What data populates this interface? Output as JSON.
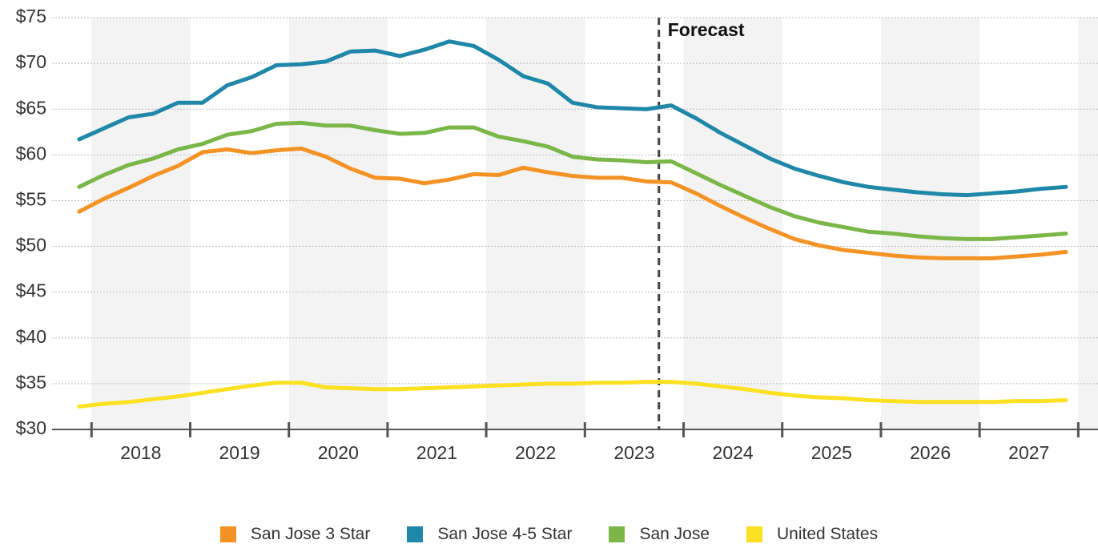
{
  "chart_data": {
    "type": "line",
    "x": [
      2017.875,
      2018.125,
      2018.375,
      2018.625,
      2018.875,
      2019.125,
      2019.375,
      2019.625,
      2019.875,
      2020.125,
      2020.375,
      2020.625,
      2020.875,
      2021.125,
      2021.375,
      2021.625,
      2021.875,
      2022.125,
      2022.375,
      2022.625,
      2022.875,
      2023.125,
      2023.375,
      2023.625,
      2023.875,
      2024.125,
      2024.375,
      2024.625,
      2024.875,
      2025.125,
      2025.375,
      2025.625,
      2025.875,
      2026.125,
      2026.375,
      2026.625,
      2026.875,
      2027.125,
      2027.375,
      2027.625,
      2027.875
    ],
    "series": [
      {
        "name": "San Jose 3 Star",
        "color": "#f39325",
        "values": [
          53.8,
          55.2,
          56.4,
          57.7,
          58.8,
          60.3,
          60.6,
          60.2,
          60.5,
          60.7,
          59.8,
          58.5,
          57.5,
          57.4,
          56.9,
          57.3,
          57.9,
          57.8,
          58.6,
          58.1,
          57.7,
          57.5,
          57.5,
          57.1,
          57.0,
          55.8,
          54.4,
          53.1,
          51.9,
          50.8,
          50.1,
          49.6,
          49.3,
          49.0,
          48.8,
          48.7,
          48.7,
          48.7,
          48.9,
          49.1,
          49.4
        ]
      },
      {
        "name": "San Jose 4-5 Star",
        "color": "#1f87a8",
        "values": [
          61.7,
          62.9,
          64.1,
          64.5,
          65.7,
          65.7,
          67.6,
          68.5,
          69.8,
          69.9,
          70.2,
          71.3,
          71.4,
          70.8,
          71.5,
          72.4,
          71.9,
          70.4,
          68.6,
          67.8,
          65.7,
          65.2,
          65.1,
          65.0,
          65.4,
          64.0,
          62.4,
          61.0,
          59.6,
          58.5,
          57.7,
          57.0,
          56.5,
          56.2,
          55.9,
          55.7,
          55.6,
          55.8,
          56.0,
          56.3,
          56.5
        ]
      },
      {
        "name": "San Jose",
        "color": "#7ab648",
        "values": [
          56.5,
          57.8,
          58.9,
          59.6,
          60.6,
          61.2,
          62.2,
          62.6,
          63.4,
          63.5,
          63.2,
          63.2,
          62.7,
          62.3,
          62.4,
          63.0,
          63.0,
          62.0,
          61.5,
          60.9,
          59.8,
          59.5,
          59.4,
          59.2,
          59.3,
          58.0,
          56.7,
          55.5,
          54.3,
          53.3,
          52.6,
          52.1,
          51.6,
          51.4,
          51.1,
          50.9,
          50.8,
          50.8,
          51.0,
          51.2,
          51.4
        ]
      },
      {
        "name": "United States",
        "color": "#fbe122",
        "values": [
          32.5,
          32.8,
          33.0,
          33.3,
          33.6,
          34.0,
          34.4,
          34.8,
          35.1,
          35.1,
          34.6,
          34.5,
          34.4,
          34.4,
          34.5,
          34.6,
          34.7,
          34.8,
          34.9,
          35.0,
          35.0,
          35.1,
          35.1,
          35.2,
          35.2,
          35.0,
          34.7,
          34.4,
          34.0,
          33.7,
          33.5,
          33.4,
          33.2,
          33.1,
          33.0,
          33.0,
          33.0,
          33.0,
          33.1,
          33.1,
          33.2
        ]
      }
    ],
    "xlim": [
      2017.6,
      2028.2
    ],
    "xticks": [
      {
        "value": 2018.5,
        "label": "2018"
      },
      {
        "value": 2019.5,
        "label": "2019"
      },
      {
        "value": 2020.5,
        "label": "2020"
      },
      {
        "value": 2021.5,
        "label": "2021"
      },
      {
        "value": 2022.5,
        "label": "2022"
      },
      {
        "value": 2023.5,
        "label": "2023"
      },
      {
        "value": 2024.5,
        "label": "2024"
      },
      {
        "value": 2025.5,
        "label": "2025"
      },
      {
        "value": 2026.5,
        "label": "2026"
      },
      {
        "value": 2027.5,
        "label": "2027"
      }
    ],
    "ylim": [
      30,
      75
    ],
    "yticks": [
      {
        "value": 30,
        "label": "$30"
      },
      {
        "value": 35,
        "label": "$35"
      },
      {
        "value": 40,
        "label": "$40"
      },
      {
        "value": 45,
        "label": "$45"
      },
      {
        "value": 50,
        "label": "$50"
      },
      {
        "value": 55,
        "label": "$55"
      },
      {
        "value": 60,
        "label": "$60"
      },
      {
        "value": 65,
        "label": "$65"
      },
      {
        "value": 70,
        "label": "$70"
      },
      {
        "value": 75,
        "label": "$75"
      }
    ],
    "grid": true,
    "annotation": {
      "text": "Forecast",
      "x": 2023.75
    },
    "legend": "bottom"
  }
}
